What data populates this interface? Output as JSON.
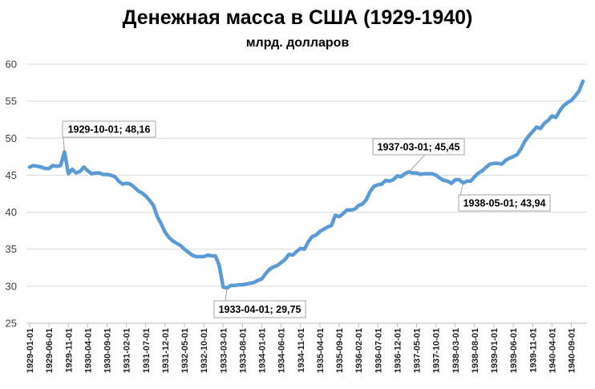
{
  "chart_data": {
    "type": "line",
    "title": "Денежная масса в США (1929-1940)",
    "subtitle": "млрд. долларов",
    "xlabel": "",
    "ylabel": "",
    "ylim": [
      25,
      60
    ],
    "yticks": [
      25,
      30,
      35,
      40,
      45,
      50,
      55,
      60
    ],
    "grid": true,
    "color": "#5B9BD5",
    "xtick_labels": [
      "1929-01-01",
      "1929-06-01",
      "1929-11-01",
      "1930-04-01",
      "1930-09-01",
      "1931-02-01",
      "1931-07-01",
      "1931-12-01",
      "1932-05-01",
      "1932-10-01",
      "1933-03-01",
      "1933-08-01",
      "1934-01-01",
      "1934-06-01",
      "1934-11-01",
      "1935-04-01",
      "1935-09-01",
      "1936-02-01",
      "1936-07-01",
      "1936-12-01",
      "1937-05-01",
      "1937-10-01",
      "1938-03-01",
      "1938-08-01",
      "1939-01-01",
      "1939-06-01",
      "1939-11-01",
      "1940-04-01",
      "1940-09-01"
    ],
    "x": [
      "1929-01-01",
      "1929-02-01",
      "1929-03-01",
      "1929-04-01",
      "1929-05-01",
      "1929-06-01",
      "1929-07-01",
      "1929-08-01",
      "1929-09-01",
      "1929-10-01",
      "1929-11-01",
      "1929-12-01",
      "1930-01-01",
      "1930-02-01",
      "1930-03-01",
      "1930-04-01",
      "1930-05-01",
      "1930-06-01",
      "1930-07-01",
      "1930-08-01",
      "1930-09-01",
      "1930-10-01",
      "1930-11-01",
      "1930-12-01",
      "1931-01-01",
      "1931-02-01",
      "1931-03-01",
      "1931-04-01",
      "1931-05-01",
      "1931-06-01",
      "1931-07-01",
      "1931-08-01",
      "1931-09-01",
      "1931-10-01",
      "1931-11-01",
      "1931-12-01",
      "1932-01-01",
      "1932-02-01",
      "1932-03-01",
      "1932-04-01",
      "1932-05-01",
      "1932-06-01",
      "1932-07-01",
      "1932-08-01",
      "1932-09-01",
      "1932-10-01",
      "1932-11-01",
      "1932-12-01",
      "1933-01-01",
      "1933-02-01",
      "1933-03-01",
      "1933-04-01",
      "1933-05-01",
      "1933-06-01",
      "1933-07-01",
      "1933-08-01",
      "1933-09-01",
      "1933-10-01",
      "1933-11-01",
      "1933-12-01",
      "1934-01-01",
      "1934-02-01",
      "1934-03-01",
      "1934-04-01",
      "1934-05-01",
      "1934-06-01",
      "1934-07-01",
      "1934-08-01",
      "1934-09-01",
      "1934-10-01",
      "1934-11-01",
      "1934-12-01",
      "1935-01-01",
      "1935-02-01",
      "1935-03-01",
      "1935-04-01",
      "1935-05-01",
      "1935-06-01",
      "1935-07-01",
      "1935-08-01",
      "1935-09-01",
      "1935-10-01",
      "1935-11-01",
      "1935-12-01",
      "1936-01-01",
      "1936-02-01",
      "1936-03-01",
      "1936-04-01",
      "1936-05-01",
      "1936-06-01",
      "1936-07-01",
      "1936-08-01",
      "1936-09-01",
      "1936-10-01",
      "1936-11-01",
      "1936-12-01",
      "1937-01-01",
      "1937-02-01",
      "1937-03-01",
      "1937-04-01",
      "1937-05-01",
      "1937-06-01",
      "1937-07-01",
      "1937-08-01",
      "1937-09-01",
      "1937-10-01",
      "1937-11-01",
      "1937-12-01",
      "1938-01-01",
      "1938-02-01",
      "1938-03-01",
      "1938-04-01",
      "1938-05-01",
      "1938-06-01",
      "1938-07-01",
      "1938-08-01",
      "1938-09-01",
      "1938-10-01",
      "1938-11-01",
      "1938-12-01",
      "1939-01-01",
      "1939-02-01",
      "1939-03-01",
      "1939-04-01",
      "1939-05-01",
      "1939-06-01",
      "1939-07-01",
      "1939-08-01",
      "1939-09-01",
      "1939-10-01",
      "1939-11-01",
      "1939-12-01",
      "1940-01-01",
      "1940-02-01",
      "1940-03-01",
      "1940-04-01",
      "1940-05-01",
      "1940-06-01",
      "1940-07-01",
      "1940-08-01",
      "1940-09-01",
      "1940-10-01",
      "1940-11-01",
      "1940-12-01"
    ],
    "y": [
      46.1,
      46.3,
      46.2,
      46.1,
      45.9,
      45.9,
      46.3,
      46.2,
      46.3,
      48.16,
      45.2,
      45.8,
      45.3,
      45.5,
      46.1,
      45.6,
      45.2,
      45.3,
      45.3,
      45.1,
      45.1,
      45.0,
      44.8,
      44.2,
      43.8,
      43.9,
      43.8,
      43.4,
      42.9,
      42.6,
      42.2,
      41.6,
      40.9,
      39.4,
      38.4,
      37.3,
      36.6,
      36.1,
      35.8,
      35.5,
      35.0,
      34.6,
      34.2,
      34.0,
      34.0,
      34.0,
      34.2,
      34.1,
      34.1,
      32.8,
      29.9,
      29.75,
      30.1,
      30.1,
      30.2,
      30.2,
      30.3,
      30.4,
      30.5,
      30.8,
      31.0,
      31.7,
      32.3,
      32.6,
      32.8,
      33.2,
      33.6,
      34.3,
      34.2,
      34.7,
      35.1,
      35.0,
      36.0,
      36.7,
      36.9,
      37.4,
      37.7,
      38.0,
      38.2,
      39.6,
      39.4,
      39.8,
      40.3,
      40.3,
      40.4,
      40.9,
      41.1,
      41.7,
      42.8,
      43.5,
      43.7,
      43.8,
      44.3,
      44.2,
      44.4,
      44.9,
      44.8,
      45.2,
      45.45,
      45.3,
      45.3,
      45.1,
      45.2,
      45.2,
      45.2,
      45.0,
      44.6,
      44.3,
      44.2,
      43.9,
      44.4,
      44.4,
      43.94,
      44.2,
      44.2,
      44.8,
      45.3,
      45.6,
      46.1,
      46.5,
      46.6,
      46.6,
      46.5,
      47.0,
      47.3,
      47.5,
      47.8,
      48.6,
      49.6,
      50.3,
      50.9,
      51.5,
      51.3,
      52.0,
      52.4,
      53.0,
      52.8,
      53.7,
      54.4,
      54.8,
      55.1,
      55.7,
      56.4,
      57.7
    ],
    "annotations": [
      {
        "x": "1929-10-01",
        "y": 48.16,
        "text": "1929-10-01; 48,16"
      },
      {
        "x": "1933-04-01",
        "y": 29.75,
        "text": "1933-04-01; 29,75"
      },
      {
        "x": "1937-03-01",
        "y": 45.45,
        "text": "1937-03-01; 45,45"
      },
      {
        "x": "1938-05-01",
        "y": 43.94,
        "text": "1938-05-01; 43,94"
      }
    ]
  }
}
